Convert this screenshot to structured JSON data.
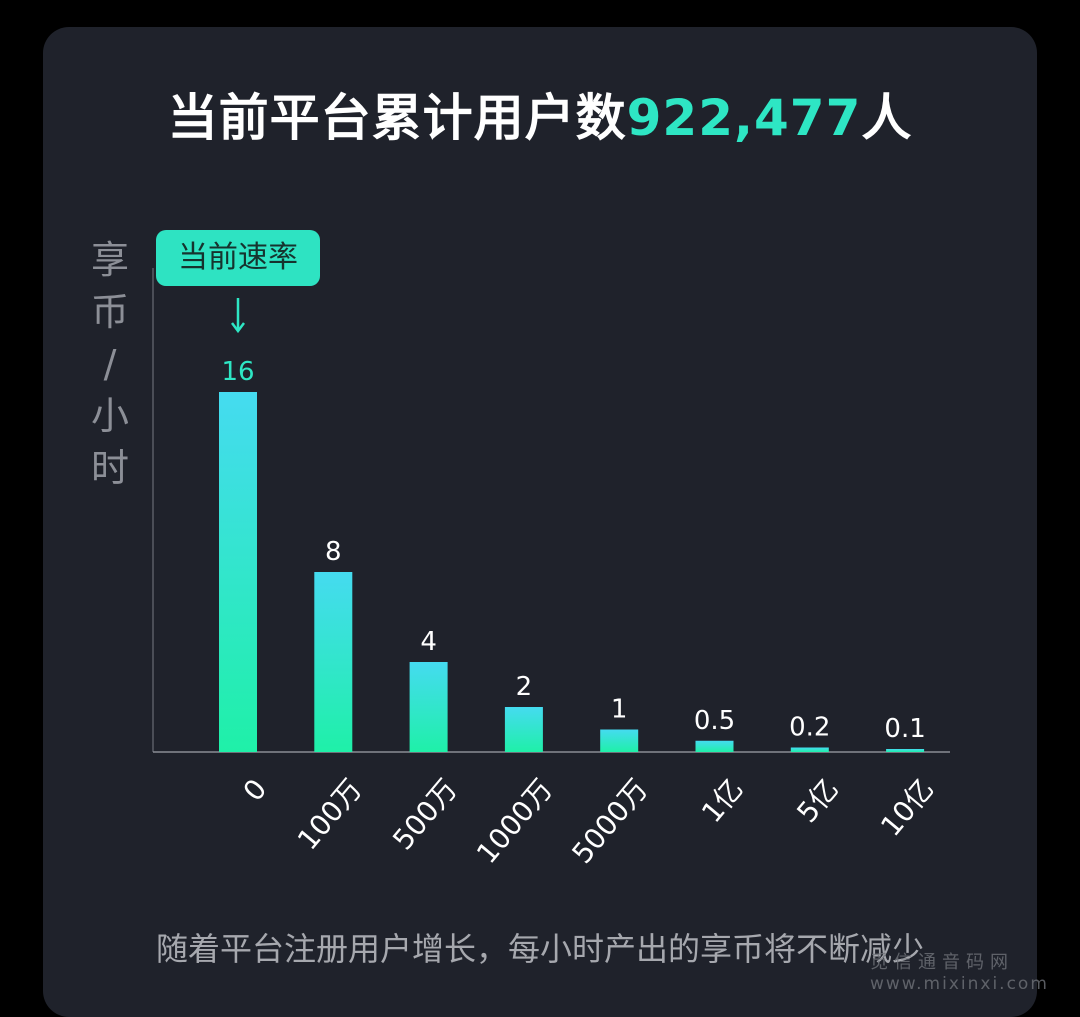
{
  "header": {
    "title_prefix": "当前平台累计用户数",
    "title_number": "922,477",
    "title_suffix": "人"
  },
  "y_axis_label_chars": [
    "享",
    "币",
    "/",
    "小",
    "时"
  ],
  "current_rate_badge": "当前速率",
  "footer_text": "随着平台注册用户增长，每小时产出的享币将不断减少",
  "watermark": {
    "line1": "觅信通音码网",
    "line2": "www.mixinxi.com"
  },
  "colors": {
    "accent": "#2ee6c4",
    "bar_top": "#45dbf0",
    "bar_bottom": "#1ff0a8",
    "background": "#1f222b"
  },
  "chart_data": {
    "type": "bar",
    "categories": [
      "0",
      "100万",
      "500万",
      "1000万",
      "5000万",
      "1亿",
      "5亿",
      "10亿"
    ],
    "values": [
      16,
      8,
      4,
      2,
      1,
      0.5,
      0.2,
      0.1
    ],
    "value_labels": [
      "16",
      "8",
      "4",
      "2",
      "1",
      "0.5",
      "0.2",
      "0.1"
    ],
    "ylabel": "享币/小时",
    "ylim": [
      0,
      16
    ],
    "highlighted_index": 0,
    "grid": false
  }
}
